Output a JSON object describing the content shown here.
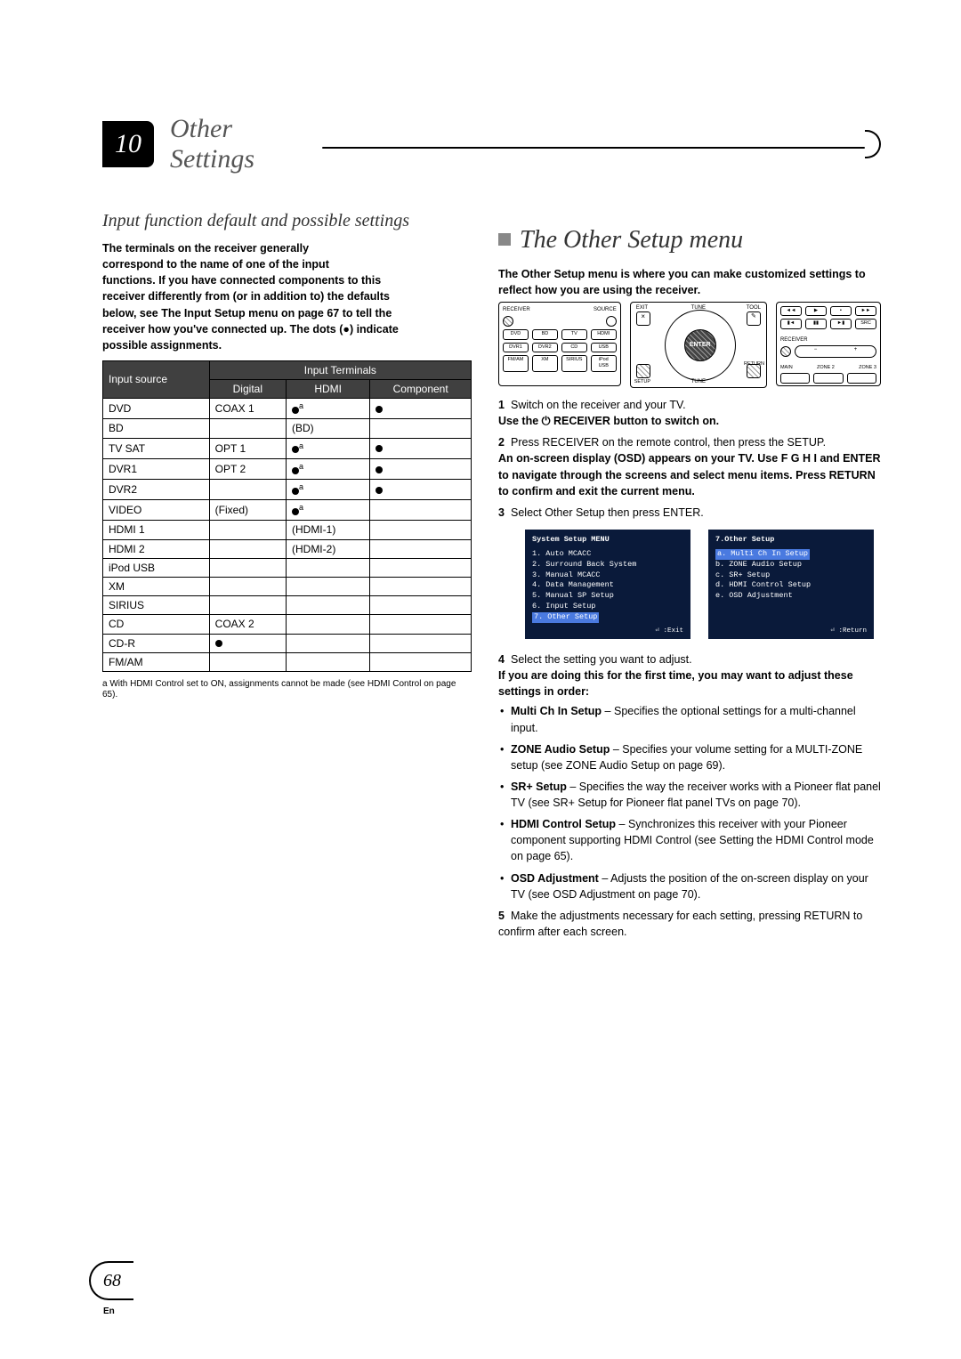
{
  "chapter": {
    "number": "10",
    "title": "Other Settings"
  },
  "left": {
    "section_title": "Input function default and possible settings",
    "intro_lines": [
      "The terminals on the receiver generally",
      "correspond to the name of one of the input",
      "functions. If you have connected components to this",
      "receiver differently from (or in addition to) the defaults",
      "below, see The Input Setup menu on page 67 to tell the",
      "receiver how you've connected up. The dots (●) indicate",
      "possible assignments."
    ],
    "table": {
      "header_src": "Input source",
      "header_terms": "Input Terminals",
      "cols": [
        "Digital",
        "HDMI",
        "Component"
      ],
      "rows": [
        {
          "src": "DVD",
          "digital": "COAX 1",
          "hdmi": "dot_a",
          "comp": "dot"
        },
        {
          "src": "BD",
          "digital": "",
          "hdmi": "(BD)",
          "comp": ""
        },
        {
          "src": "TV SAT",
          "digital": "OPT 1",
          "hdmi": "dot_a",
          "comp": "dot"
        },
        {
          "src": "DVR1",
          "digital": "OPT 2",
          "hdmi": "dot_a",
          "comp": "dot"
        },
        {
          "src": "DVR2",
          "digital": "",
          "hdmi": "dot_a",
          "comp": "dot"
        },
        {
          "src": "VIDEO",
          "digital": "(Fixed)",
          "hdmi": "dot_a",
          "comp": ""
        },
        {
          "src": "HDMI 1",
          "digital": "",
          "hdmi": "(HDMI-1)",
          "comp": ""
        },
        {
          "src": "HDMI 2",
          "digital": "",
          "hdmi": "(HDMI-2)",
          "comp": ""
        },
        {
          "src": "iPod USB",
          "digital": "",
          "hdmi": "",
          "comp": ""
        },
        {
          "src": "XM",
          "digital": "",
          "hdmi": "",
          "comp": ""
        },
        {
          "src": "SIRIUS",
          "digital": "",
          "hdmi": "",
          "comp": ""
        },
        {
          "src": "CD",
          "digital": "COAX 2",
          "hdmi": "",
          "comp": ""
        },
        {
          "src": "CD-R",
          "digital": "dot",
          "hdmi": "",
          "comp": ""
        },
        {
          "src": "FM/AM",
          "digital": "",
          "hdmi": "",
          "comp": ""
        }
      ]
    },
    "footnote_a": "a With HDMI Control set to ON, assignments cannot be made (see HDMI Control on page 65)."
  },
  "right": {
    "section_title": "The Other Setup menu",
    "intro": "The Other Setup menu is where you can make customized settings to reflect how you are using the receiver.",
    "remote_labels": {
      "mid_enter": "ENTER",
      "pad1": [
        "RECEIVER",
        "SOURCE",
        "DVD",
        "BD",
        "TV",
        "HDMI",
        "DVR1",
        "DVR2",
        "CD",
        "USB",
        "FM/AM",
        "XM",
        "SIRIUS",
        "iPod USB"
      ],
      "small": [
        "EXIT",
        "TUNE",
        "TOOL",
        "RECEIVER",
        "RETURN",
        "SETUP",
        "TUNE",
        "MAIN",
        "ZONE 2",
        "ZONE 3"
      ]
    },
    "steps": {
      "s1": "Switch on the receiver and your TV.",
      "s1b": "Use the ⏻ RECEIVER button to switch on.",
      "s2": "Press RECEIVER on the remote control, then press the SETUP.",
      "s2b_lines": [
        "An on-screen display (OSD) appears on your TV. Use ",
        "and ENTER to navigate through the screens and select menu items. Press RETURN to confirm and exit the current menu."
      ],
      "s3": "Select  Other Setup   then press  ENTER.",
      "s4": "Select the setting you want to adjust.",
      "s4b": "If you are doing this for the first time, you may want to adjust these settings in order:",
      "s5": "Make the adjustments necessary for each setting, pressing RETURN to confirm after each screen."
    },
    "osd_left": {
      "title": "System  Setup  MENU",
      "items": [
        "1. Auto  MCACC",
        "2. Surround  Back  System",
        "3. Manual  MCACC",
        "4. Data  Management",
        "5. Manual  SP  Setup",
        "6. Input  Setup"
      ],
      "hl": "7. Other  Setup",
      "foot": "⏎ :Exit"
    },
    "osd_right": {
      "title": "7.Other  Setup",
      "hl": "a. Multi  Ch  In  Setup",
      "items": [
        "b. ZONE  Audio  Setup",
        "c. SR+  Setup",
        "d. HDMI  Control  Setup",
        "e. OSD  Adjustment"
      ],
      "foot": "⏎ :Return"
    },
    "bullets": [
      {
        "title": "Multi Ch In Setup",
        "desc": " – Specifies the optional settings for a multi-channel input."
      },
      {
        "title": "ZONE Audio Setup",
        "desc": " – Specifies your volume setting for a MULTI-ZONE setup (see ZONE Audio Setup on page 69)."
      },
      {
        "title": "SR+ Setup",
        "desc": " – Specifies the way the receiver works with a Pioneer flat panel TV (see SR+ Setup for Pioneer flat panel TVs on page 70)."
      },
      {
        "title": "HDMI Control Setup",
        "desc": " – Synchronizes this receiver with your Pioneer component supporting HDMI Control (see Setting the HDMI Control mode on page 65)."
      },
      {
        "title": "OSD Adjustment",
        "desc": " – Adjusts the position of the on-screen display on your TV (see OSD Adjustment on page 70)."
      }
    ]
  },
  "page_number": "68",
  "lang": "En",
  "colors": {
    "header_bg": "#404040",
    "osd_bg": "#0a1a3a",
    "osd_hl": "#4a7ae0"
  }
}
